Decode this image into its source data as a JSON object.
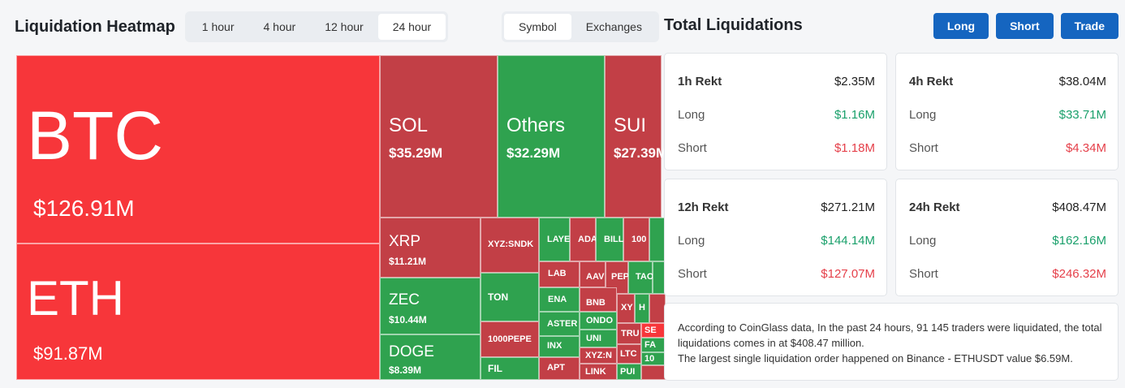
{
  "heatmap": {
    "title": "Liquidation Heatmap",
    "time_tabs": [
      "1 hour",
      "4 hour",
      "12 hour",
      "24 hour"
    ],
    "active_time": "24 hour",
    "view_tabs": [
      "Symbol",
      "Exchanges"
    ],
    "active_view": "Symbol",
    "cells": [
      {
        "name": "BTC",
        "value": "$126.91M"
      },
      {
        "name": "ETH",
        "value": "$91.87M"
      },
      {
        "name": "SOL",
        "value": "$35.29M"
      },
      {
        "name": "Others",
        "value": "$32.29M"
      },
      {
        "name": "SUI",
        "value": "$27.39M"
      },
      {
        "name": "XRP",
        "value": "$11.21M"
      },
      {
        "name": "ZEC",
        "value": "$10.44M"
      },
      {
        "name": "DOGE",
        "value": "$8.39M"
      },
      {
        "name": "XYZ:SNDK"
      },
      {
        "name": "TON"
      },
      {
        "name": "1000PEPE"
      },
      {
        "name": "FIL"
      },
      {
        "name": "LAYE"
      },
      {
        "name": "ADA"
      },
      {
        "name": "BILL"
      },
      {
        "name": "100"
      },
      {
        "name": "LAB"
      },
      {
        "name": "AAV"
      },
      {
        "name": "PEP"
      },
      {
        "name": "TAO"
      },
      {
        "name": "ENA"
      },
      {
        "name": "BNB"
      },
      {
        "name": "XY"
      },
      {
        "name": "H"
      },
      {
        "name": "ASTER"
      },
      {
        "name": "ONDO"
      },
      {
        "name": "UNI"
      },
      {
        "name": "TRU"
      },
      {
        "name": "SE"
      },
      {
        "name": "INX"
      },
      {
        "name": "XYZ:N"
      },
      {
        "name": "LTC"
      },
      {
        "name": "FA"
      },
      {
        "name": "10"
      },
      {
        "name": "APT"
      },
      {
        "name": "LINK"
      },
      {
        "name": "PUI"
      }
    ]
  },
  "total": {
    "title": "Total Liquidations",
    "buttons": {
      "long": "Long",
      "short": "Short",
      "trade": "Trade"
    },
    "cards": [
      {
        "label": "1h Rekt",
        "total": "$2.35M",
        "long_label": "Long",
        "long": "$1.16M",
        "short_label": "Short",
        "short": "$1.18M"
      },
      {
        "label": "4h Rekt",
        "total": "$38.04M",
        "long_label": "Long",
        "long": "$33.71M",
        "short_label": "Short",
        "short": "$4.34M"
      },
      {
        "label": "12h Rekt",
        "total": "$271.21M",
        "long_label": "Long",
        "long": "$144.14M",
        "short_label": "Short",
        "short": "$127.07M"
      },
      {
        "label": "24h Rekt",
        "total": "$408.47M",
        "long_label": "Long",
        "long": "$162.16M",
        "short_label": "Short",
        "short": "$246.32M"
      }
    ],
    "summary_line1": "According to CoinGlass data, In the past 24 hours, 91 145 traders were liquidated, the total liquidations comes in at $408.47 million.",
    "summary_line2": "The largest single liquidation order happened on Binance - ETHUSDT value $6.59M."
  },
  "colors": {
    "short_red": "#f7363a",
    "dark_red": "#c23f46",
    "long_green": "#2fa24f",
    "button_blue": "#1565c0"
  }
}
